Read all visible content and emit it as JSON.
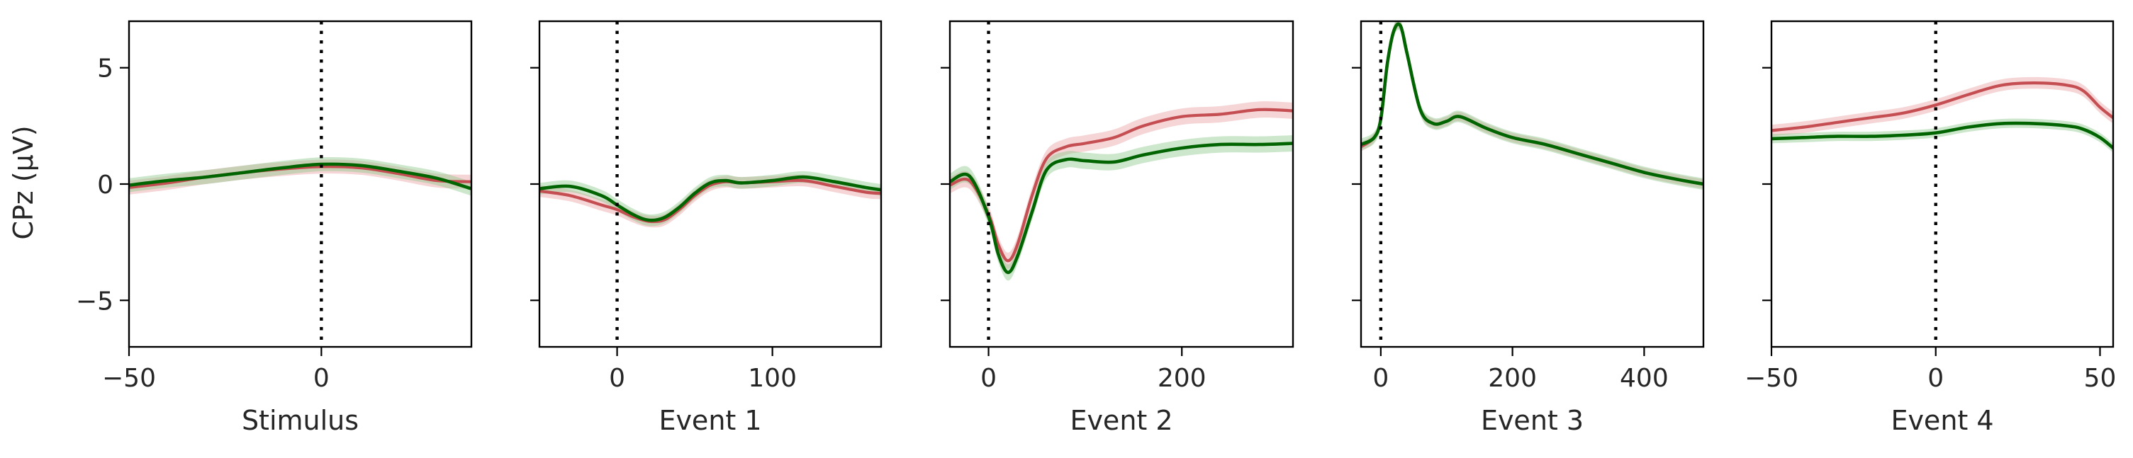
{
  "colors": {
    "series_a": "#c44e52",
    "band_a": "#eba2a4",
    "series_b": "#006400",
    "band_b": "#8fc98f"
  },
  "y_axis": {
    "label": "CPz (μV)",
    "ylim": [
      -7,
      7
    ],
    "ticks": [
      -5,
      0,
      5
    ]
  },
  "chart_data": [
    {
      "type": "line",
      "xlabel": "Stimulus",
      "xlim": [
        -50,
        39
      ],
      "xticks": [
        -50,
        0
      ],
      "vline": 0,
      "series": [
        {
          "x": [
            -50,
            -40,
            -30,
            -20,
            -10,
            0,
            10,
            20,
            30,
            39
          ],
          "y": [
            -0.15,
            0.05,
            0.3,
            0.5,
            0.65,
            0.75,
            0.7,
            0.45,
            0.15,
            0.1
          ],
          "err": 0.3
        },
        {
          "x": [
            -50,
            -40,
            -30,
            -20,
            -10,
            0,
            10,
            20,
            30,
            39
          ],
          "y": [
            -0.05,
            0.15,
            0.3,
            0.5,
            0.7,
            0.85,
            0.8,
            0.55,
            0.25,
            -0.2
          ],
          "err": 0.3
        }
      ]
    },
    {
      "type": "line",
      "xlabel": "Event 1",
      "xlim": [
        -50,
        170
      ],
      "xticks": [
        0,
        100
      ],
      "vline": 0,
      "series": [
        {
          "x": [
            -50,
            -30,
            -10,
            0,
            10,
            20,
            30,
            40,
            50,
            60,
            70,
            80,
            100,
            120,
            140,
            160,
            170
          ],
          "y": [
            -0.3,
            -0.5,
            -0.9,
            -1.1,
            -1.4,
            -1.6,
            -1.55,
            -1.1,
            -0.5,
            -0.05,
            0.1,
            0.05,
            0.1,
            0.15,
            -0.1,
            -0.35,
            -0.4
          ],
          "err": 0.25
        },
        {
          "x": [
            -50,
            -30,
            -10,
            0,
            10,
            20,
            30,
            40,
            50,
            60,
            70,
            80,
            100,
            120,
            140,
            160,
            170
          ],
          "y": [
            -0.2,
            -0.1,
            -0.5,
            -0.9,
            -1.3,
            -1.55,
            -1.45,
            -1.0,
            -0.4,
            0.05,
            0.15,
            0.05,
            0.15,
            0.3,
            0.1,
            -0.15,
            -0.25
          ],
          "err": 0.25
        }
      ]
    },
    {
      "type": "line",
      "xlabel": "Event 2",
      "xlim": [
        -40,
        315
      ],
      "xticks": [
        0,
        200
      ],
      "vline": 0,
      "series": [
        {
          "x": [
            -40,
            -20,
            0,
            10,
            20,
            30,
            45,
            60,
            80,
            100,
            130,
            160,
            200,
            240,
            280,
            315
          ],
          "y": [
            -0.05,
            0.15,
            -1.3,
            -2.6,
            -3.3,
            -2.6,
            -0.5,
            1.1,
            1.6,
            1.75,
            2.0,
            2.5,
            2.9,
            3.0,
            3.2,
            3.15
          ],
          "err": 0.35
        },
        {
          "x": [
            -40,
            -20,
            0,
            10,
            20,
            30,
            45,
            60,
            80,
            100,
            130,
            160,
            200,
            240,
            280,
            315
          ],
          "y": [
            0.1,
            0.35,
            -1.4,
            -3.0,
            -3.8,
            -3.1,
            -1.2,
            0.6,
            1.05,
            1.0,
            0.95,
            1.25,
            1.55,
            1.7,
            1.7,
            1.75
          ],
          "err": 0.35
        }
      ]
    },
    {
      "type": "line",
      "xlabel": "Event 3",
      "xlim": [
        -30,
        490
      ],
      "xticks": [
        0,
        200,
        400
      ],
      "vline": 0,
      "series": [
        {
          "x": [
            -30,
            -10,
            0,
            10,
            20,
            30,
            40,
            60,
            80,
            100,
            120,
            160,
            200,
            250,
            300,
            350,
            400,
            450,
            490
          ],
          "y": [
            1.6,
            2.0,
            2.8,
            5.2,
            6.6,
            6.8,
            5.6,
            3.2,
            2.6,
            2.7,
            2.9,
            2.4,
            2.0,
            1.7,
            1.3,
            0.9,
            0.5,
            0.2,
            0.0
          ],
          "err": 0.2
        },
        {
          "x": [
            -30,
            -10,
            0,
            10,
            20,
            30,
            40,
            60,
            80,
            100,
            120,
            160,
            200,
            250,
            300,
            350,
            400,
            450,
            490
          ],
          "y": [
            1.7,
            2.0,
            2.8,
            5.2,
            6.6,
            6.8,
            5.6,
            3.2,
            2.6,
            2.7,
            2.9,
            2.4,
            2.0,
            1.7,
            1.3,
            0.9,
            0.5,
            0.2,
            0.0
          ],
          "err": 0.25
        }
      ]
    },
    {
      "type": "line",
      "xlabel": "Event 4",
      "xlim": [
        -50,
        54
      ],
      "xticks": [
        -50,
        0,
        50
      ],
      "vline": 0,
      "series": [
        {
          "x": [
            -50,
            -40,
            -30,
            -20,
            -10,
            0,
            10,
            20,
            30,
            40,
            45,
            50,
            54
          ],
          "y": [
            2.3,
            2.45,
            2.65,
            2.85,
            3.05,
            3.4,
            3.85,
            4.25,
            4.35,
            4.25,
            4.0,
            3.3,
            2.85
          ],
          "err": 0.25
        },
        {
          "x": [
            -50,
            -40,
            -30,
            -20,
            -10,
            0,
            10,
            20,
            30,
            40,
            45,
            50,
            54
          ],
          "y": [
            1.95,
            2.0,
            2.05,
            2.05,
            2.1,
            2.2,
            2.45,
            2.6,
            2.6,
            2.5,
            2.35,
            2.0,
            1.55
          ],
          "err": 0.2
        }
      ]
    }
  ]
}
